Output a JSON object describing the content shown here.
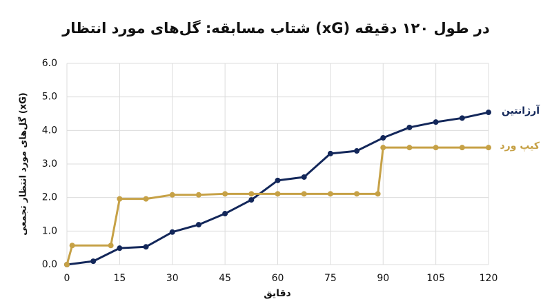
{
  "chart_data": {
    "type": "line",
    "title": "شتاب مسابقه: گل‌های مورد انتظار (xG) در طول ۱۲۰ دقیقه",
    "x_label": "دقایق",
    "y_label": "گل‌های مورد انتظار تجمعی (xG)",
    "series": [
      {
        "name": "آرژانتین",
        "color": "#13275a",
        "x": [
          0,
          7.5,
          15,
          22.5,
          30,
          37.5,
          45,
          52.5,
          60,
          67.5,
          75,
          82.5,
          90,
          97.5,
          105,
          112.5,
          120
        ],
        "values": [
          0,
          0.1,
          0.49,
          0.53,
          0.97,
          1.19,
          1.52,
          1.93,
          2.51,
          2.61,
          3.31,
          3.39,
          3.78,
          4.09,
          4.25,
          4.37,
          4.54
        ]
      },
      {
        "name": "کیپ ورد",
        "color": "#c6a146",
        "x": [
          0,
          1.5,
          12.5,
          15,
          22.5,
          30,
          37.5,
          45,
          52.5,
          60,
          67.5,
          75,
          82.5,
          88.5,
          90,
          97.5,
          105,
          112.5,
          120
        ],
        "values": [
          0,
          0.57,
          0.57,
          1.96,
          1.96,
          2.08,
          2.08,
          2.11,
          2.11,
          2.11,
          2.11,
          2.11,
          2.11,
          2.11,
          3.49,
          3.49,
          3.49,
          3.49,
          3.49
        ]
      }
    ],
    "xlim": [
      0,
      120
    ],
    "xticks": [
      0,
      15,
      30,
      45,
      60,
      75,
      90,
      105,
      120
    ],
    "ylim": [
      0,
      6
    ],
    "yticks": [
      {
        "value": 0,
        "label": "0.0"
      },
      {
        "value": 1,
        "label": "1.0"
      },
      {
        "value": 2,
        "label": "2.0"
      },
      {
        "value": 3,
        "label": "3.0"
      },
      {
        "value": 4,
        "label": "4.0"
      },
      {
        "value": 5,
        "label": "5.0"
      },
      {
        "value": 6,
        "label": "6.0"
      }
    ],
    "grid": true
  }
}
